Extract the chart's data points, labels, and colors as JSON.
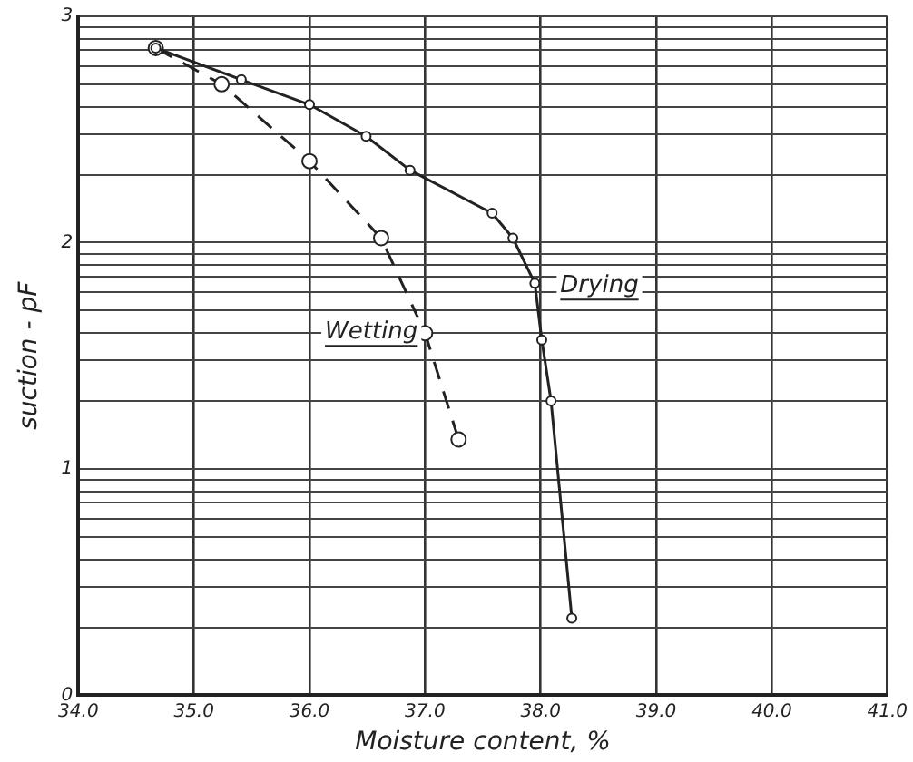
{
  "chart_data": {
    "type": "line",
    "xlabel": "Moisture content, %",
    "ylabel": "suction - pF",
    "xlim": [
      34.0,
      41.0
    ],
    "xticks": [
      {
        "value": 34,
        "label": "34.0"
      },
      {
        "value": 35,
        "label": "35.0"
      },
      {
        "value": 36,
        "label": "36.0"
      },
      {
        "value": 37,
        "label": "37.0"
      },
      {
        "value": 38,
        "label": "38.0"
      },
      {
        "value": 39,
        "label": "39.0"
      },
      {
        "value": 40,
        "label": "40.0"
      },
      {
        "value": 41,
        "label": "41.0"
      }
    ],
    "ylim": [
      0,
      3
    ],
    "yticks": [
      0,
      {
        "value": 0.3,
        "label": null
      },
      {
        "value": 0.48,
        "label": null
      },
      {
        "value": 0.6,
        "label": null
      },
      {
        "value": 0.7,
        "label": null
      },
      {
        "value": 0.78,
        "label": null
      },
      {
        "value": 0.85,
        "label": null
      },
      {
        "value": 0.9,
        "label": null
      },
      {
        "value": 0.95,
        "label": null
      },
      1,
      {
        "value": 1.3,
        "label": null
      },
      {
        "value": 1.48,
        "label": null
      },
      {
        "value": 1.6,
        "label": null
      },
      {
        "value": 1.7,
        "label": null
      },
      {
        "value": 1.78,
        "label": null
      },
      {
        "value": 1.85,
        "label": null
      },
      {
        "value": 1.9,
        "label": null
      },
      {
        "value": 1.95,
        "label": null
      },
      2,
      {
        "value": 2.3,
        "label": null
      },
      {
        "value": 2.48,
        "label": null
      },
      {
        "value": 2.6,
        "label": null
      },
      {
        "value": 2.7,
        "label": null
      },
      {
        "value": 2.78,
        "label": null
      },
      {
        "value": 2.85,
        "label": null
      },
      {
        "value": 2.9,
        "label": null
      },
      {
        "value": 2.95,
        "label": null
      },
      3
    ],
    "grid": true,
    "legend": false,
    "marker": "circle",
    "series": [
      {
        "name": "Drying",
        "color": "#222222",
        "line_style": "solid",
        "x": [
          34.67,
          35.41,
          36.0,
          36.49,
          36.87,
          37.58,
          37.76,
          37.95,
          38.01,
          38.09,
          38.27
        ],
        "values": [
          2.86,
          2.72,
          2.61,
          2.47,
          2.32,
          2.13,
          2.02,
          1.82,
          1.57,
          1.3,
          0.34
        ]
      },
      {
        "name": "Wetting",
        "color": "#222222",
        "line_style": "dashed",
        "x": [
          34.67,
          35.24,
          36.0,
          36.62,
          37.0,
          37.29
        ],
        "values": [
          2.86,
          2.7,
          2.36,
          2.02,
          1.6,
          1.13
        ]
      }
    ]
  }
}
